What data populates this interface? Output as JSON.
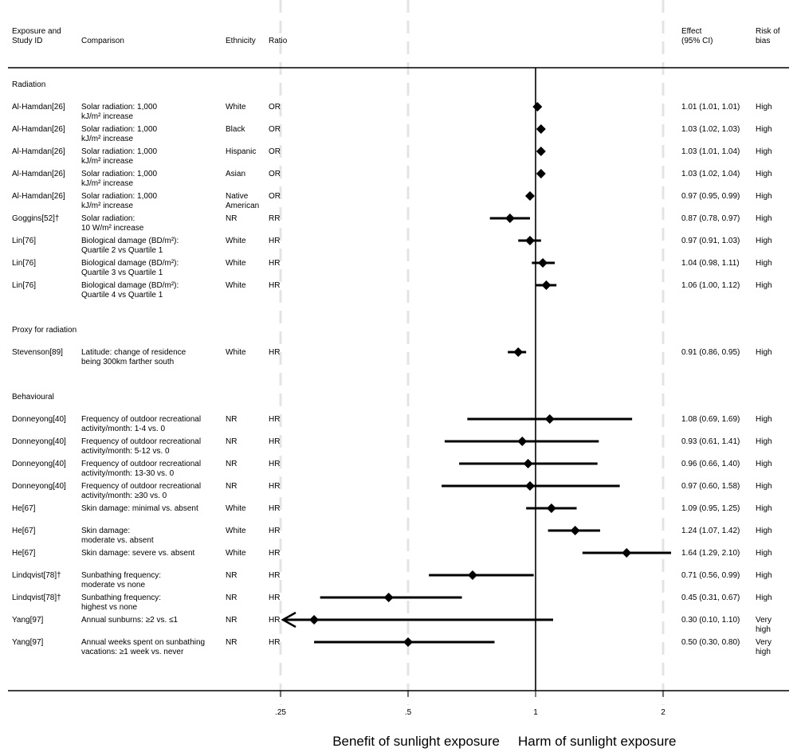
{
  "headers": {
    "study": [
      "Exposure and",
      "Study ID"
    ],
    "comparison": "Comparison",
    "ethnicity": "Ethnicity",
    "ratio": "Ratio",
    "effect": [
      "Effect",
      "(95% CI)"
    ],
    "risk": [
      "Risk of",
      "bias"
    ]
  },
  "footer": {
    "benefit": "Benefit of sunlight exposure",
    "harm": "Harm of sunlight exposure"
  },
  "chart_data": {
    "type": "forest",
    "scale": "log",
    "reference_line": 1,
    "x_ticks": [
      {
        "value": 0.25,
        "label": ".25"
      },
      {
        "value": 0.5,
        "label": ".5"
      },
      {
        "value": 1,
        "label": "1"
      },
      {
        "value": 2,
        "label": "2"
      }
    ],
    "rows": [
      {
        "kind": "section",
        "label": "Radiation"
      },
      {
        "kind": "study",
        "study": "Al-Hamdan[26]",
        "comparison": [
          "Solar radiation: 1,000",
          "kJ/m² increase"
        ],
        "ethnicity": [
          "White"
        ],
        "ratio": "OR",
        "est": 1.01,
        "lo": 1.01,
        "hi": 1.01,
        "effect": "1.01 (1.01, 1.01)",
        "risk": [
          "High"
        ]
      },
      {
        "kind": "study",
        "study": "Al-Hamdan[26]",
        "comparison": [
          "Solar radiation: 1,000",
          "kJ/m² increase"
        ],
        "ethnicity": [
          "Black"
        ],
        "ratio": "OR",
        "est": 1.03,
        "lo": 1.02,
        "hi": 1.03,
        "effect": "1.03 (1.02, 1.03)",
        "risk": [
          "High"
        ]
      },
      {
        "kind": "study",
        "study": "Al-Hamdan[26]",
        "comparison": [
          "Solar radiation: 1,000",
          "kJ/m² increase"
        ],
        "ethnicity": [
          "Hispanic"
        ],
        "ratio": "OR",
        "est": 1.03,
        "lo": 1.01,
        "hi": 1.04,
        "effect": "1.03 (1.01, 1.04)",
        "risk": [
          "High"
        ]
      },
      {
        "kind": "study",
        "study": "Al-Hamdan[26]",
        "comparison": [
          "Solar radiation: 1,000",
          "kJ/m² increase"
        ],
        "ethnicity": [
          "Asian"
        ],
        "ratio": "OR",
        "est": 1.03,
        "lo": 1.02,
        "hi": 1.04,
        "effect": "1.03 (1.02, 1.04)",
        "risk": [
          "High"
        ]
      },
      {
        "kind": "study",
        "study": "Al-Hamdan[26]",
        "comparison": [
          "Solar radiation: 1,000",
          "kJ/m² increase"
        ],
        "ethnicity": [
          "Native",
          "American"
        ],
        "ratio": "OR",
        "est": 0.97,
        "lo": 0.95,
        "hi": 0.99,
        "effect": "0.97 (0.95, 0.99)",
        "risk": [
          "High"
        ]
      },
      {
        "kind": "study",
        "study": "Goggins[52]†",
        "comparison": [
          "Solar radiation:",
          "10 W/m² increase"
        ],
        "ethnicity": [
          "NR"
        ],
        "ratio": "RR",
        "est": 0.87,
        "lo": 0.78,
        "hi": 0.97,
        "effect": "0.87 (0.78, 0.97)",
        "risk": [
          "High"
        ]
      },
      {
        "kind": "study",
        "study": "Lin[76]",
        "comparison": [
          "Biological damage (BD/m²):",
          "Quartile 2 vs Quartile 1"
        ],
        "ethnicity": [
          "White"
        ],
        "ratio": "HR",
        "est": 0.97,
        "lo": 0.91,
        "hi": 1.03,
        "effect": "0.97 (0.91, 1.03)",
        "risk": [
          "High"
        ]
      },
      {
        "kind": "study",
        "study": "Lin[76]",
        "comparison": [
          "Biological damage (BD/m²):",
          "Quartile 3 vs Quartile 1"
        ],
        "ethnicity": [
          "White"
        ],
        "ratio": "HR",
        "est": 1.04,
        "lo": 0.98,
        "hi": 1.11,
        "effect": "1.04 (0.98, 1.11)",
        "risk": [
          "High"
        ]
      },
      {
        "kind": "study",
        "study": "Lin[76]",
        "comparison": [
          "Biological damage (BD/m²):",
          "Quartile 4 vs Quartile 1"
        ],
        "ethnicity": [
          "White"
        ],
        "ratio": "HR",
        "est": 1.06,
        "lo": 1.0,
        "hi": 1.12,
        "effect": "1.06 (1.00, 1.12)",
        "risk": [
          "High"
        ]
      },
      {
        "kind": "blank"
      },
      {
        "kind": "section",
        "label": "Proxy for radiation"
      },
      {
        "kind": "study",
        "study": "Stevenson[89]",
        "comparison": [
          "Latitude: change of residence",
          "being 300km farther south"
        ],
        "ethnicity": [
          "White"
        ],
        "ratio": "HR",
        "est": 0.91,
        "lo": 0.86,
        "hi": 0.95,
        "effect": "0.91 (0.86, 0.95)",
        "risk": [
          "High"
        ]
      },
      {
        "kind": "blank"
      },
      {
        "kind": "section",
        "label": "Behavioural"
      },
      {
        "kind": "study",
        "study": "Donneyong[40]",
        "comparison": [
          "Frequency of outdoor recreational",
          "activity/month: 1-4 vs. 0"
        ],
        "ethnicity": [
          "NR"
        ],
        "ratio": "HR",
        "est": 1.08,
        "lo": 0.69,
        "hi": 1.69,
        "effect": "1.08 (0.69, 1.69)",
        "risk": [
          "High"
        ]
      },
      {
        "kind": "study",
        "study": "Donneyong[40]",
        "comparison": [
          "Frequency of outdoor recreational",
          "activity/month: 5-12 vs. 0"
        ],
        "ethnicity": [
          "NR"
        ],
        "ratio": "HR",
        "est": 0.93,
        "lo": 0.61,
        "hi": 1.41,
        "effect": "0.93 (0.61, 1.41)",
        "risk": [
          "High"
        ]
      },
      {
        "kind": "study",
        "study": "Donneyong[40]",
        "comparison": [
          "Frequency of outdoor recreational",
          "activity/month: 13-30 vs. 0"
        ],
        "ethnicity": [
          "NR"
        ],
        "ratio": "HR",
        "est": 0.96,
        "lo": 0.66,
        "hi": 1.4,
        "effect": "0.96 (0.66, 1.40)",
        "risk": [
          "High"
        ]
      },
      {
        "kind": "study",
        "study": "Donneyong[40]",
        "comparison": [
          "Frequency of outdoor recreational",
          "activity/month: ≥30 vs. 0"
        ],
        "ethnicity": [
          "NR"
        ],
        "ratio": "HR",
        "est": 0.97,
        "lo": 0.6,
        "hi": 1.58,
        "effect": "0.97 (0.60, 1.58)",
        "risk": [
          "High"
        ]
      },
      {
        "kind": "study",
        "study": "He[67]",
        "comparison": [
          "Skin damage: minimal vs. absent"
        ],
        "ethnicity": [
          "White"
        ],
        "ratio": "HR",
        "est": 1.09,
        "lo": 0.95,
        "hi": 1.25,
        "effect": "1.09 (0.95, 1.25)",
        "risk": [
          "High"
        ]
      },
      {
        "kind": "study",
        "study": "He[67]",
        "comparison": [
          "Skin damage:",
          "moderate vs. absent"
        ],
        "ethnicity": [
          "White"
        ],
        "ratio": "HR",
        "est": 1.24,
        "lo": 1.07,
        "hi": 1.42,
        "effect": "1.24 (1.07, 1.42)",
        "risk": [
          "High"
        ]
      },
      {
        "kind": "study",
        "study": "He[67]",
        "comparison": [
          "Skin damage: severe vs. absent"
        ],
        "ethnicity": [
          "White"
        ],
        "ratio": "HR",
        "est": 1.64,
        "lo": 1.29,
        "hi": 2.1,
        "effect": "1.64 (1.29, 2.10)",
        "risk": [
          "High"
        ]
      },
      {
        "kind": "study",
        "study": "Lindqvist[78]†",
        "comparison": [
          "Sunbathing frequency:",
          "moderate vs none"
        ],
        "ethnicity": [
          "NR"
        ],
        "ratio": "HR",
        "est": 0.71,
        "lo": 0.56,
        "hi": 0.99,
        "effect": "0.71 (0.56, 0.99)",
        "risk": [
          "High"
        ]
      },
      {
        "kind": "study",
        "study": "Lindqvist[78]†",
        "comparison": [
          "Sunbathing frequency:",
          "highest vs none"
        ],
        "ethnicity": [
          "NR"
        ],
        "ratio": "HR",
        "est": 0.45,
        "lo": 0.31,
        "hi": 0.67,
        "effect": "0.45 (0.31, 0.67)",
        "risk": [
          "High"
        ]
      },
      {
        "kind": "study",
        "study": "Yang[97]",
        "comparison": [
          "Annual sunburns: ≥2 vs. ≤1"
        ],
        "ethnicity": [
          "NR"
        ],
        "ratio": "HR",
        "est": 0.3,
        "lo": 0.1,
        "hi": 1.1,
        "effect": "0.30 (0.10, 1.10)",
        "risk": [
          "Very",
          "high"
        ],
        "lower_truncated": true
      },
      {
        "kind": "study",
        "study": "Yang[97]",
        "comparison": [
          "Annual weeks spent on sunbathing",
          "vacations: ≥1 week vs. never"
        ],
        "ethnicity": [
          "NR"
        ],
        "ratio": "HR",
        "est": 0.5,
        "lo": 0.3,
        "hi": 0.8,
        "effect": "0.50 (0.30, 0.80)",
        "risk": [
          "Very",
          "high"
        ]
      }
    ]
  }
}
